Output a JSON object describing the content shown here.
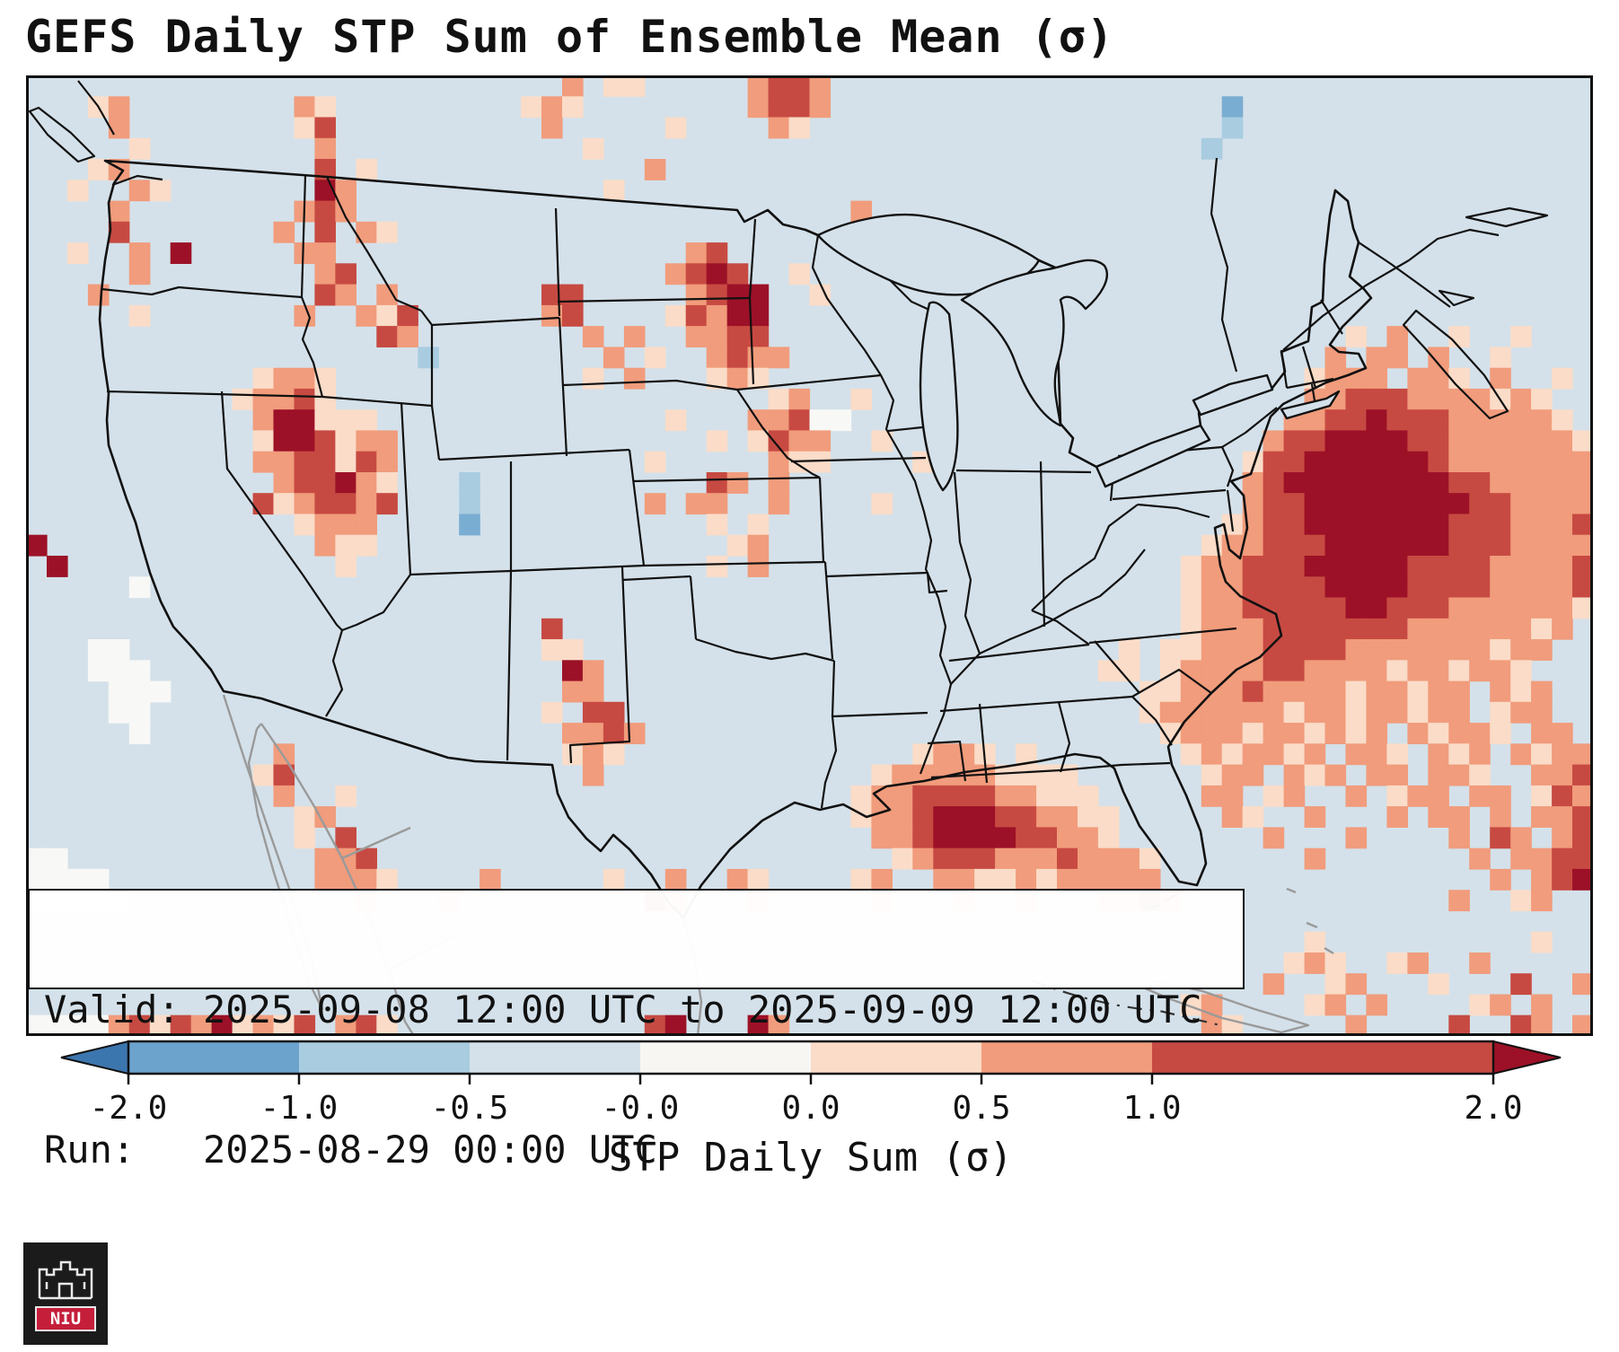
{
  "title": "GEFS Daily STP Sum of Ensemble Mean (σ)",
  "info_box": {
    "valid_line": "Valid: 2025-09-08 12:00 UTC to 2025-09-09 12:00 UTC",
    "run_line": "Run:   2025-08-29 00:00 UTC"
  },
  "colorbar": {
    "label": "STP Daily Sum (σ)",
    "ticks": [
      "-2.0",
      "-1.0",
      "-0.5",
      "-0.0",
      "0.0",
      "0.5",
      "1.0",
      "2.0"
    ],
    "segment_colors": [
      "#6ba3cd",
      "#a9cce1",
      "#d4e1ea",
      "#f7f6f3",
      "#fadcc8",
      "#f19c7c",
      "#c74a42",
      "#c74a42"
    ],
    "under_color": "#3c76ae",
    "over_color": "#9c1127"
  },
  "logo": {
    "text": "NIU",
    "banner_color": "#c41e3a"
  },
  "map": {
    "background": "#d4e1ea",
    "border_color": "#111111",
    "coast_secondary_color": "#9a9a9a",
    "palette": [
      "#fadcc8",
      "#f19c7c",
      "#c74a42",
      "#9c1127",
      "#a9cce1",
      "#f8f8f6",
      "#7aadd2"
    ],
    "cells": [
      [
        0,
        26,
        "1"
      ],
      [
        0,
        28,
        "00"
      ],
      [
        0,
        35,
        "1221"
      ],
      [
        1,
        3,
        "01"
      ],
      [
        1,
        13,
        "10"
      ],
      [
        1,
        24,
        "010"
      ],
      [
        1,
        35,
        "1221"
      ],
      [
        1,
        58,
        "6"
      ],
      [
        2,
        4,
        "1"
      ],
      [
        2,
        13,
        "02"
      ],
      [
        2,
        25,
        "1"
      ],
      [
        2,
        31,
        "0"
      ],
      [
        2,
        36,
        "10"
      ],
      [
        2,
        58,
        "4"
      ],
      [
        3,
        5,
        "0"
      ],
      [
        3,
        14,
        "1"
      ],
      [
        3,
        27,
        "0"
      ],
      [
        3,
        57,
        "4"
      ],
      [
        4,
        3,
        "01"
      ],
      [
        4,
        14,
        "2"
      ],
      [
        4,
        16,
        "0"
      ],
      [
        4,
        30,
        "1"
      ],
      [
        5,
        2,
        "0"
      ],
      [
        5,
        5,
        "10"
      ],
      [
        5,
        14,
        "31"
      ],
      [
        5,
        28,
        "0"
      ],
      [
        6,
        4,
        "1"
      ],
      [
        6,
        13,
        "121"
      ],
      [
        6,
        40,
        "1"
      ],
      [
        7,
        4,
        "2"
      ],
      [
        7,
        12,
        "1"
      ],
      [
        7,
        14,
        "2"
      ],
      [
        7,
        16,
        "10"
      ],
      [
        8,
        2,
        "0"
      ],
      [
        8,
        5,
        "1"
      ],
      [
        8,
        7,
        "3"
      ],
      [
        8,
        13,
        "11"
      ],
      [
        8,
        32,
        "12"
      ],
      [
        9,
        5,
        "1"
      ],
      [
        9,
        14,
        "12"
      ],
      [
        9,
        31,
        "1232"
      ],
      [
        9,
        37,
        "0"
      ],
      [
        10,
        3,
        "1"
      ],
      [
        10,
        14,
        "21"
      ],
      [
        10,
        17,
        "1"
      ],
      [
        10,
        25,
        "22"
      ],
      [
        10,
        32,
        "1233"
      ],
      [
        10,
        38,
        "0"
      ],
      [
        11,
        5,
        "0"
      ],
      [
        11,
        13,
        "1"
      ],
      [
        11,
        16,
        "102"
      ],
      [
        11,
        25,
        "12"
      ],
      [
        11,
        31,
        "02133"
      ],
      [
        12,
        17,
        "21"
      ],
      [
        12,
        27,
        "1"
      ],
      [
        12,
        29,
        "1"
      ],
      [
        12,
        32,
        "1122"
      ],
      [
        12,
        64,
        "0"
      ],
      [
        12,
        66,
        "1"
      ],
      [
        12,
        69,
        "0"
      ],
      [
        12,
        72,
        "0"
      ],
      [
        13,
        19,
        "4"
      ],
      [
        13,
        28,
        "1"
      ],
      [
        13,
        30,
        "0"
      ],
      [
        13,
        33,
        "1211"
      ],
      [
        13,
        63,
        "1"
      ],
      [
        13,
        65,
        "11"
      ],
      [
        13,
        68,
        "1"
      ],
      [
        13,
        71,
        "0"
      ],
      [
        14,
        11,
        "0110"
      ],
      [
        14,
        27,
        "0"
      ],
      [
        14,
        29,
        "1"
      ],
      [
        14,
        33,
        "010"
      ],
      [
        14,
        62,
        "0111"
      ],
      [
        14,
        67,
        "110"
      ],
      [
        14,
        71,
        "1"
      ],
      [
        14,
        74,
        "0"
      ],
      [
        15,
        10,
        "0112"
      ],
      [
        15,
        14,
        "0"
      ],
      [
        15,
        36,
        "01"
      ],
      [
        15,
        40,
        "0"
      ],
      [
        15,
        62,
        "112221111010"
      ],
      [
        16,
        11,
        "1330"
      ],
      [
        16,
        15,
        "00"
      ],
      [
        16,
        31,
        "0"
      ],
      [
        16,
        35,
        "11255"
      ],
      [
        16,
        61,
        "11223222111110"
      ],
      [
        17,
        11,
        "03320"
      ],
      [
        17,
        16,
        "11"
      ],
      [
        17,
        33,
        "0"
      ],
      [
        17,
        35,
        "0211"
      ],
      [
        17,
        41,
        "0"
      ],
      [
        17,
        60,
        "122333322111111"
      ],
      [
        17,
        75,
        "0"
      ],
      [
        18,
        11,
        "1122021"
      ],
      [
        18,
        30,
        "0"
      ],
      [
        18,
        36,
        "10"
      ],
      [
        18,
        38,
        "0"
      ],
      [
        18,
        43,
        "0"
      ],
      [
        18,
        59,
        "0223333332111111"
      ],
      [
        18,
        75,
        "1"
      ],
      [
        19,
        12,
        "122310"
      ],
      [
        19,
        21,
        "4"
      ],
      [
        19,
        33,
        "21"
      ],
      [
        19,
        36,
        "1"
      ],
      [
        19,
        59,
        "1233333333221111"
      ],
      [
        19,
        75,
        "1"
      ],
      [
        20,
        11,
        "2012212"
      ],
      [
        20,
        21,
        "4"
      ],
      [
        20,
        30,
        "1"
      ],
      [
        20,
        32,
        "11"
      ],
      [
        20,
        36,
        "1"
      ],
      [
        20,
        41,
        "0"
      ],
      [
        20,
        59,
        "1223333333322111"
      ],
      [
        20,
        75,
        "1"
      ],
      [
        21,
        13,
        "0111"
      ],
      [
        21,
        21,
        "6"
      ],
      [
        21,
        33,
        "0"
      ],
      [
        21,
        35,
        "0"
      ],
      [
        21,
        58,
        "01223333333222111"
      ],
      [
        21,
        75,
        "2"
      ],
      [
        22,
        0,
        "3"
      ],
      [
        22,
        14,
        "100"
      ],
      [
        22,
        34,
        "01"
      ],
      [
        22,
        57,
        "011222333333222111"
      ],
      [
        22,
        75,
        "1"
      ],
      [
        23,
        1,
        "3"
      ],
      [
        23,
        15,
        "0"
      ],
      [
        23,
        33,
        "0"
      ],
      [
        23,
        35,
        "1"
      ],
      [
        23,
        56,
        "0112223333322221111"
      ],
      [
        23,
        75,
        "2"
      ],
      [
        24,
        5,
        "5"
      ],
      [
        24,
        56,
        "011222233332222111"
      ],
      [
        24,
        74,
        "12"
      ],
      [
        25,
        56,
        "01122222332221111"
      ],
      [
        25,
        73,
        "110"
      ],
      [
        26,
        25,
        "2"
      ],
      [
        26,
        56,
        "0111222222211111"
      ],
      [
        26,
        72,
        "101"
      ],
      [
        27,
        3,
        "55"
      ],
      [
        27,
        25,
        "00"
      ],
      [
        27,
        53,
        "0"
      ],
      [
        27,
        55,
        "0011122221111111011"
      ],
      [
        28,
        3,
        "555"
      ],
      [
        28,
        26,
        "31"
      ],
      [
        28,
        52,
        "00"
      ],
      [
        28,
        55,
        "011112211110110110"
      ],
      [
        29,
        4,
        "555"
      ],
      [
        29,
        26,
        "11"
      ],
      [
        29,
        54,
        "0011121111011011"
      ],
      [
        29,
        71,
        "101"
      ],
      [
        30,
        4,
        "55"
      ],
      [
        30,
        25,
        "0"
      ],
      [
        30,
        27,
        "22"
      ],
      [
        30,
        54,
        "0111111011011011"
      ],
      [
        30,
        71,
        "011"
      ],
      [
        31,
        5,
        "5"
      ],
      [
        31,
        26,
        "1121"
      ],
      [
        31,
        55,
        "01110110101"
      ],
      [
        31,
        67,
        "10110"
      ],
      [
        31,
        73,
        "11"
      ],
      [
        32,
        12,
        "1"
      ],
      [
        32,
        26,
        "010"
      ],
      [
        32,
        43,
        "0110"
      ],
      [
        32,
        48,
        "0"
      ],
      [
        32,
        56,
        "0101101"
      ],
      [
        32,
        64,
        "110"
      ],
      [
        32,
        68,
        "101"
      ],
      [
        32,
        72,
        "1011"
      ],
      [
        33,
        11,
        "02"
      ],
      [
        33,
        27,
        "1"
      ],
      [
        33,
        41,
        "01111100"
      ],
      [
        33,
        49,
        "00"
      ],
      [
        33,
        57,
        "011"
      ],
      [
        33,
        61,
        "101"
      ],
      [
        33,
        65,
        "11"
      ],
      [
        33,
        68,
        "110"
      ],
      [
        33,
        73,
        "112"
      ],
      [
        34,
        12,
        "1"
      ],
      [
        34,
        15,
        "0"
      ],
      [
        34,
        40,
        "011222211000"
      ],
      [
        34,
        57,
        "11"
      ],
      [
        34,
        60,
        "01"
      ],
      [
        34,
        64,
        "1"
      ],
      [
        34,
        66,
        "011"
      ],
      [
        34,
        70,
        "11"
      ],
      [
        34,
        73,
        "021"
      ],
      [
        35,
        13,
        "01"
      ],
      [
        35,
        40,
        "0112333221100"
      ],
      [
        35,
        58,
        "10"
      ],
      [
        35,
        62,
        "1"
      ],
      [
        35,
        66,
        "1"
      ],
      [
        35,
        68,
        "11"
      ],
      [
        35,
        71,
        "1"
      ],
      [
        35,
        73,
        "112"
      ],
      [
        36,
        13,
        "0"
      ],
      [
        36,
        15,
        "2"
      ],
      [
        36,
        41,
        "112333322110"
      ],
      [
        36,
        60,
        "1"
      ],
      [
        36,
        64,
        "1"
      ],
      [
        36,
        69,
        "1"
      ],
      [
        36,
        71,
        "21"
      ],
      [
        36,
        74,
        "12"
      ],
      [
        37,
        0,
        "55"
      ],
      [
        37,
        14,
        "112"
      ],
      [
        37,
        42,
        "0122211121110"
      ],
      [
        37,
        62,
        "1"
      ],
      [
        37,
        70,
        "1"
      ],
      [
        37,
        72,
        "112"
      ],
      [
        37,
        75,
        "2"
      ],
      [
        38,
        0,
        "5555"
      ],
      [
        38,
        14,
        "1110"
      ],
      [
        38,
        22,
        "1"
      ],
      [
        38,
        28,
        "0"
      ],
      [
        38,
        31,
        "1"
      ],
      [
        38,
        34,
        "10"
      ],
      [
        38,
        40,
        "01"
      ],
      [
        38,
        44,
        "1100101111"
      ],
      [
        38,
        54,
        "1"
      ],
      [
        38,
        71,
        "1"
      ],
      [
        38,
        73,
        "123"
      ],
      [
        39,
        0,
        "55555"
      ],
      [
        39,
        15,
        "01"
      ],
      [
        39,
        20,
        "1"
      ],
      [
        39,
        24,
        "0"
      ],
      [
        39,
        30,
        "21"
      ],
      [
        39,
        35,
        "1"
      ],
      [
        39,
        41,
        "10"
      ],
      [
        39,
        44,
        "01"
      ],
      [
        39,
        46,
        "0"
      ],
      [
        39,
        48,
        "1"
      ],
      [
        39,
        52,
        "1121"
      ],
      [
        39,
        69,
        "1"
      ],
      [
        39,
        72,
        "01"
      ],
      [
        41,
        62,
        "0"
      ],
      [
        41,
        73,
        "0"
      ],
      [
        42,
        61,
        "010"
      ],
      [
        42,
        66,
        "01"
      ],
      [
        42,
        70,
        "1"
      ],
      [
        43,
        60,
        "1"
      ],
      [
        43,
        63,
        "01"
      ],
      [
        43,
        68,
        "0"
      ],
      [
        43,
        72,
        "2"
      ],
      [
        43,
        75,
        "1"
      ],
      [
        44,
        56,
        "01"
      ],
      [
        44,
        62,
        "01"
      ],
      [
        44,
        65,
        "1"
      ],
      [
        44,
        70,
        "01"
      ],
      [
        44,
        73,
        "1"
      ],
      [
        45,
        0,
        "5555"
      ],
      [
        45,
        4,
        "1202130102"
      ],
      [
        45,
        15,
        "120"
      ],
      [
        45,
        30,
        "23"
      ],
      [
        45,
        35,
        "31"
      ],
      [
        45,
        57,
        "10"
      ],
      [
        45,
        64,
        "1"
      ],
      [
        45,
        69,
        "2"
      ],
      [
        45,
        72,
        "21"
      ],
      [
        45,
        75,
        "1"
      ]
    ]
  }
}
